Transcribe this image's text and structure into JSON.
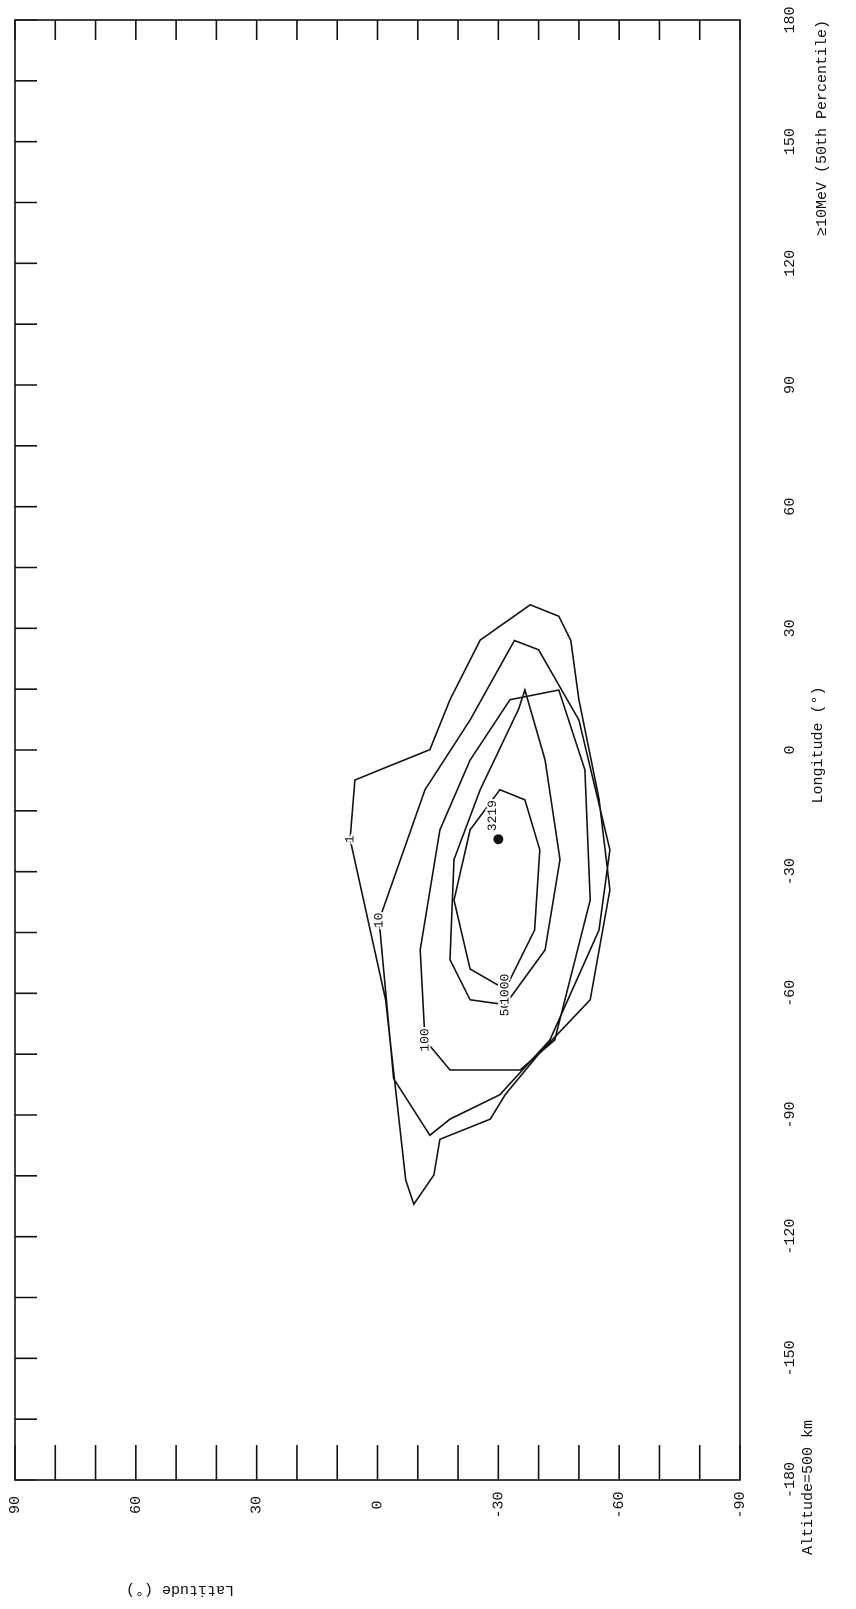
{
  "chart_data": {
    "type": "contour",
    "x_label": "Longitude (°)",
    "y_label": "Latitude (°)",
    "left_note": "Altitude=500 km",
    "right_note": "≥10MeV (50th Percentile)",
    "xlim": [
      -180,
      180
    ],
    "xticks": [
      -180,
      -150,
      -120,
      -90,
      -60,
      -30,
      0,
      30,
      60,
      90,
      120,
      150,
      180
    ],
    "ylim": [
      -90,
      90
    ],
    "yticks": [
      -90,
      -60,
      -30,
      0,
      30,
      60,
      90
    ],
    "color": "#111111",
    "contours": [
      {
        "level": 1,
        "lon": [
          35.8,
          27.1,
          12.4,
          0.1,
          -7.4,
          -22,
          -61.6,
          -106,
          -112,
          -104.8,
          -96,
          -91,
          -85,
          -75,
          -61.6,
          -34.5,
          -12,
          12.4,
          27,
          33
        ],
        "lat": [
          -37.9,
          -25.5,
          -18,
          -13,
          5.6,
          6.8,
          -2,
          -7,
          -9,
          -14,
          -15.5,
          -28,
          -31.7,
          -40,
          -52.8,
          -57.7,
          -55,
          -50,
          -48,
          -45
        ]
      },
      {
        "level": 10,
        "lon": [
          27,
          7.4,
          -9.8,
          -42,
          -81,
          -95,
          -91,
          -85,
          -71.5,
          -44.4,
          -24.6,
          7.4,
          24.7
        ],
        "lat": [
          -34,
          -23,
          -11.8,
          -0.4,
          -4,
          -13,
          -18,
          -30.4,
          -42.8,
          -55,
          -57.7,
          -50,
          -40
        ]
      },
      {
        "level": 100,
        "lon": [
          12.4,
          -2.5,
          -19.7,
          -49.3,
          -71.5,
          -78.9,
          -78.9,
          -71.5,
          -37,
          -4.9,
          14.8
        ],
        "lat": [
          -32.9,
          -23,
          -15.5,
          -10.6,
          -11.8,
          -18,
          -35.4,
          -44,
          -52.8,
          -51.5,
          -45
        ]
      },
      {
        "level": 500,
        "lon": [
          10,
          -9.8,
          -27,
          -51.7,
          -61.6,
          -62.8,
          -49.3,
          -27,
          -2.5,
          14.8
        ],
        "lat": [
          -35,
          -25.5,
          -19,
          -18,
          -23,
          -31.7,
          -41.6,
          -45.3,
          -41.6,
          -36.6
        ]
      },
      {
        "level": 1000,
        "lon": [
          -9.8,
          -19.7,
          -37,
          -54,
          -59,
          -44.4,
          -24.6,
          -12.3
        ],
        "lat": [
          -30.4,
          -23,
          -19,
          -23,
          -31.7,
          -39,
          -40.3,
          -36.6
        ]
      }
    ],
    "peak": {
      "lon": -22,
      "lat": -30,
      "value": 3219
    }
  }
}
